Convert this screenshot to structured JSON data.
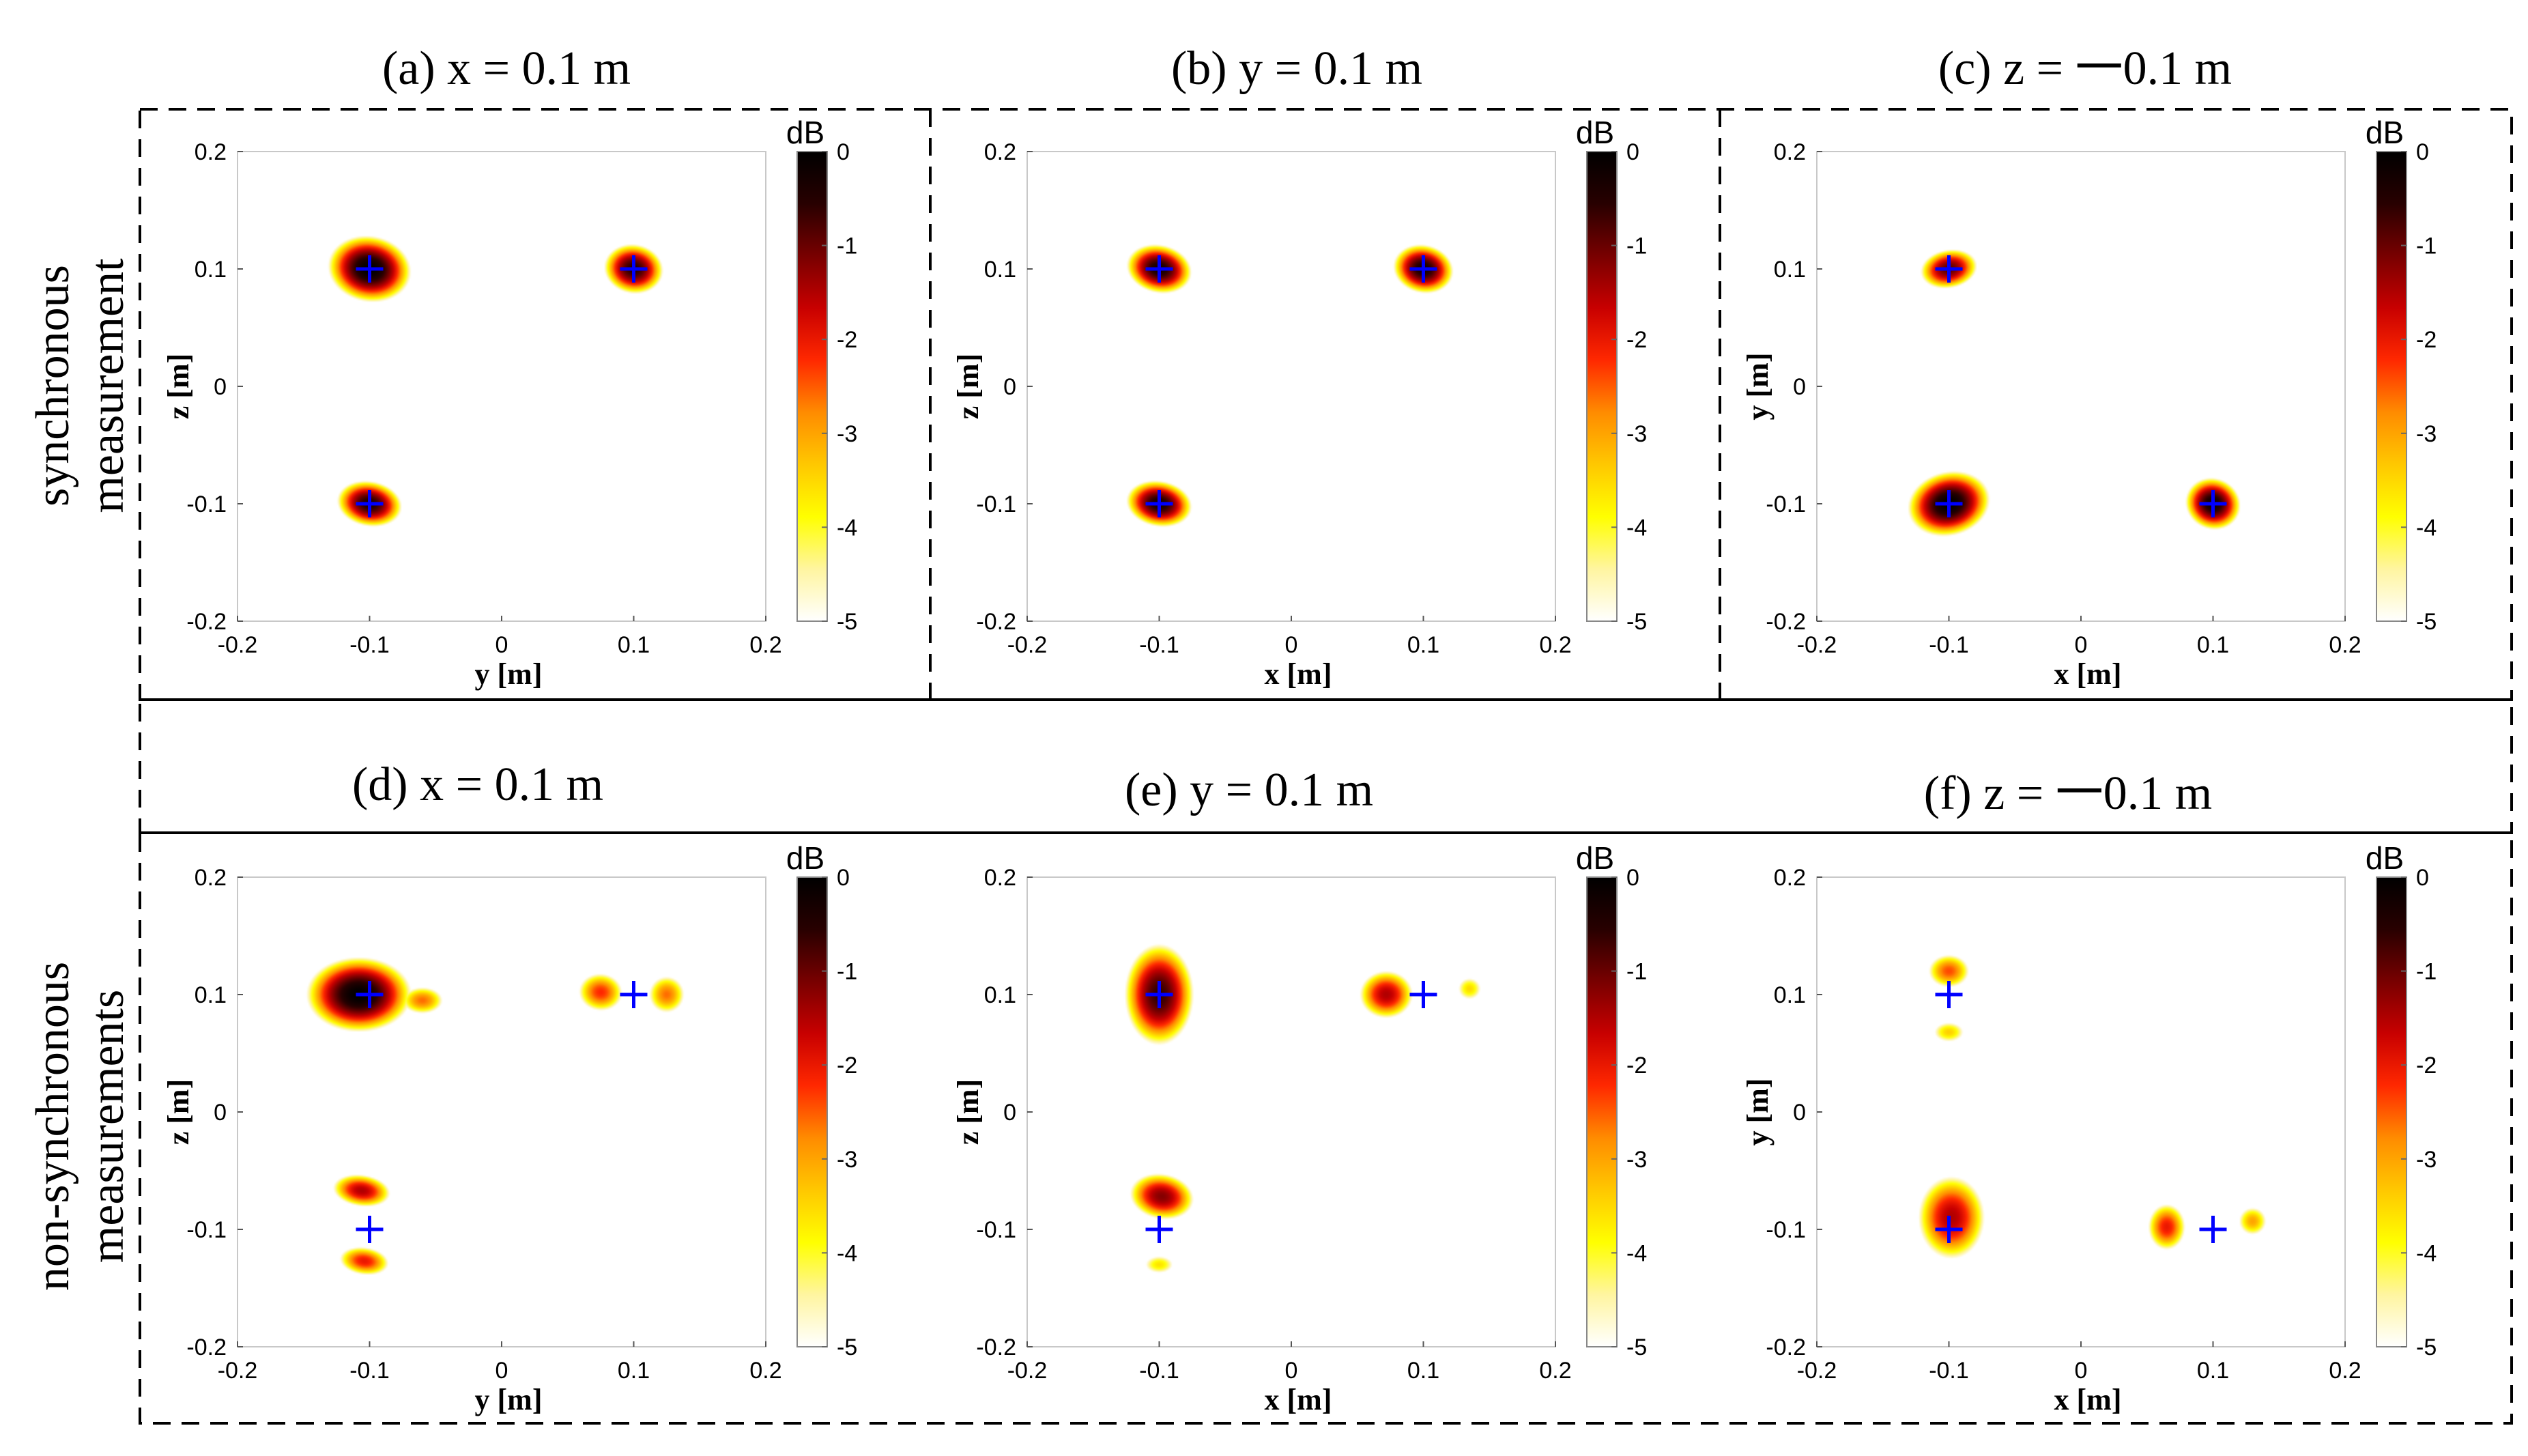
{
  "figure": {
    "row_labels": [
      [
        "synchronous",
        "measurement"
      ],
      [
        "non-synchronous",
        "measurements"
      ]
    ]
  },
  "colors": {
    "marker": "#0000ff",
    "colormap": [
      "#ffffff",
      "#fff5a0",
      "#ffff00",
      "#ffc800",
      "#ff8c00",
      "#ff2800",
      "#c80000",
      "#780000",
      "#280000",
      "#000000"
    ]
  },
  "chart_data": [
    {
      "type": "heatmap",
      "panel": "a",
      "title": "(a) x = 0.1 m",
      "xlabel": "y [m]",
      "ylabel": "z [m]",
      "xlim": [
        -0.2,
        0.2
      ],
      "ylim": [
        -0.2,
        0.2
      ],
      "xticks": [
        "-0.2",
        "-0.1",
        "0",
        "0.1",
        "0.2"
      ],
      "yticks": [
        "0.2",
        "0.1",
        "0",
        "-0.1",
        "-0.2"
      ],
      "colorbar": {
        "label": "dB",
        "range": [
          -5,
          0
        ],
        "ticks": [
          "0",
          "-1",
          "-2",
          "-3",
          "-4",
          "-5"
        ]
      },
      "sources": [
        [
          -0.1,
          0.1
        ],
        [
          0.1,
          0.1
        ],
        [
          -0.1,
          -0.1
        ]
      ],
      "blobs": [
        {
          "x": -0.1,
          "y": 0.1,
          "sx": 0.032,
          "sy": 0.028,
          "peak": 0,
          "rot": -20
        },
        {
          "x": 0.1,
          "y": 0.1,
          "sx": 0.024,
          "sy": 0.022,
          "peak": -0.5,
          "rot": -25
        },
        {
          "x": -0.1,
          "y": -0.1,
          "sx": 0.026,
          "sy": 0.02,
          "peak": -0.4,
          "rot": -15
        }
      ]
    },
    {
      "type": "heatmap",
      "panel": "b",
      "title": "(b) y = 0.1 m",
      "xlabel": "x [m]",
      "ylabel": "z [m]",
      "xlim": [
        -0.2,
        0.2
      ],
      "ylim": [
        -0.2,
        0.2
      ],
      "xticks": [
        "-0.2",
        "-0.1",
        "0",
        "0.1",
        "0.2"
      ],
      "yticks": [
        "0.2",
        "0.1",
        "0",
        "-0.1",
        "-0.2"
      ],
      "colorbar": {
        "label": "dB",
        "range": [
          -5,
          0
        ],
        "ticks": [
          "0",
          "-1",
          "-2",
          "-3",
          "-4",
          "-5"
        ]
      },
      "sources": [
        [
          -0.1,
          0.1
        ],
        [
          0.1,
          0.1
        ],
        [
          -0.1,
          -0.1
        ]
      ],
      "blobs": [
        {
          "x": -0.1,
          "y": 0.1,
          "sx": 0.026,
          "sy": 0.021,
          "peak": -0.3,
          "rot": -20
        },
        {
          "x": 0.1,
          "y": 0.1,
          "sx": 0.024,
          "sy": 0.021,
          "peak": -0.3,
          "rot": -25
        },
        {
          "x": -0.1,
          "y": -0.1,
          "sx": 0.026,
          "sy": 0.02,
          "peak": -0.3,
          "rot": -15
        }
      ]
    },
    {
      "type": "heatmap",
      "panel": "c",
      "title": "(c) z = 一0.1 m",
      "xlabel": "x [m]",
      "ylabel": "y [m]",
      "xlim": [
        -0.2,
        0.2
      ],
      "ylim": [
        -0.2,
        0.2
      ],
      "xticks": [
        "-0.2",
        "-0.1",
        "0",
        "0.1",
        "0.2"
      ],
      "yticks": [
        "0.2",
        "0.1",
        "0",
        "-0.1",
        "-0.2"
      ],
      "colorbar": {
        "label": "dB",
        "range": [
          -5,
          0
        ],
        "ticks": [
          "0",
          "-1",
          "-2",
          "-3",
          "-4",
          "-5"
        ]
      },
      "sources": [
        [
          -0.1,
          0.1
        ],
        [
          -0.1,
          -0.1
        ],
        [
          0.1,
          -0.1
        ]
      ],
      "blobs": [
        {
          "x": -0.1,
          "y": 0.1,
          "sx": 0.024,
          "sy": 0.018,
          "peak": -0.9,
          "rot": 15
        },
        {
          "x": -0.1,
          "y": -0.1,
          "sx": 0.032,
          "sy": 0.027,
          "peak": 0,
          "rot": 25
        },
        {
          "x": 0.1,
          "y": -0.1,
          "sx": 0.021,
          "sy": 0.023,
          "peak": -0.2,
          "rot": 25
        }
      ]
    },
    {
      "type": "heatmap",
      "panel": "d",
      "title": "(d) x = 0.1 m",
      "xlabel": "y [m]",
      "ylabel": "z [m]",
      "xlim": [
        -0.2,
        0.2
      ],
      "ylim": [
        -0.2,
        0.2
      ],
      "xticks": [
        "-0.2",
        "-0.1",
        "0",
        "0.1",
        "0.2"
      ],
      "yticks": [
        "0.2",
        "0.1",
        "0",
        "-0.1",
        "-0.2"
      ],
      "colorbar": {
        "label": "dB",
        "range": [
          -5,
          0
        ],
        "ticks": [
          "0",
          "-1",
          "-2",
          "-3",
          "-4",
          "-5"
        ]
      },
      "sources": [
        [
          -0.1,
          0.1
        ],
        [
          0.1,
          0.1
        ],
        [
          -0.1,
          -0.1
        ]
      ],
      "blobs": [
        {
          "x": -0.108,
          "y": 0.1,
          "sx": 0.04,
          "sy": 0.032,
          "peak": 0,
          "rot": 0
        },
        {
          "x": -0.06,
          "y": 0.095,
          "sx": 0.022,
          "sy": 0.016,
          "peak": -2.6,
          "rot": 0
        },
        {
          "x": 0.075,
          "y": 0.102,
          "sx": 0.022,
          "sy": 0.021,
          "peak": -2.2,
          "rot": -20
        },
        {
          "x": 0.125,
          "y": 0.1,
          "sx": 0.019,
          "sy": 0.022,
          "peak": -2.6,
          "rot": 0
        },
        {
          "x": -0.106,
          "y": -0.067,
          "sx": 0.026,
          "sy": 0.016,
          "peak": -1.5,
          "rot": -10
        },
        {
          "x": -0.104,
          "y": -0.127,
          "sx": 0.024,
          "sy": 0.015,
          "peak": -2.0,
          "rot": -10
        }
      ]
    },
    {
      "type": "heatmap",
      "panel": "e",
      "title": "(e) y = 0.1 m",
      "xlabel": "x [m]",
      "ylabel": "z [m]",
      "xlim": [
        -0.2,
        0.2
      ],
      "ylim": [
        -0.2,
        0.2
      ],
      "xticks": [
        "-0.2",
        "-0.1",
        "0",
        "0.1",
        "0.2"
      ],
      "yticks": [
        "0.2",
        "0.1",
        "0",
        "-0.1",
        "-0.2"
      ],
      "colorbar": {
        "label": "dB",
        "range": [
          -5,
          0
        ],
        "ticks": [
          "0",
          "-1",
          "-2",
          "-3",
          "-4",
          "-5"
        ]
      },
      "sources": [
        [
          -0.1,
          0.1
        ],
        [
          0.1,
          0.1
        ],
        [
          -0.1,
          -0.1
        ]
      ],
      "blobs": [
        {
          "x": -0.1,
          "y": 0.1,
          "sx": 0.028,
          "sy": 0.046,
          "peak": -0.6,
          "rot": 0
        },
        {
          "x": 0.072,
          "y": 0.1,
          "sx": 0.024,
          "sy": 0.024,
          "peak": -1.5,
          "rot": -20
        },
        {
          "x": 0.135,
          "y": 0.105,
          "sx": 0.015,
          "sy": 0.016,
          "peak": -3.5,
          "rot": 0
        },
        {
          "x": -0.098,
          "y": -0.072,
          "sx": 0.028,
          "sy": 0.022,
          "peak": -1.2,
          "rot": -15
        },
        {
          "x": -0.1,
          "y": -0.13,
          "sx": 0.019,
          "sy": 0.013,
          "peak": -3.6,
          "rot": 0
        }
      ]
    },
    {
      "type": "heatmap",
      "panel": "f",
      "title": "(f) z = 一0.1 m",
      "xlabel": "x [m]",
      "ylabel": "y [m]",
      "xlim": [
        -0.2,
        0.2
      ],
      "ylim": [
        -0.2,
        0.2
      ],
      "xticks": [
        "-0.2",
        "-0.1",
        "0",
        "0.1",
        "0.2"
      ],
      "yticks": [
        "0.2",
        "0.1",
        "0",
        "-0.1",
        "-0.2"
      ],
      "colorbar": {
        "label": "dB",
        "range": [
          -5,
          0
        ],
        "ticks": [
          "0",
          "-1",
          "-2",
          "-3",
          "-4",
          "-5"
        ]
      },
      "sources": [
        [
          -0.1,
          0.1
        ],
        [
          -0.1,
          -0.1
        ],
        [
          0.1,
          -0.1
        ]
      ],
      "blobs": [
        {
          "x": -0.1,
          "y": 0.12,
          "sx": 0.021,
          "sy": 0.019,
          "peak": -2.4,
          "rot": 0
        },
        {
          "x": -0.1,
          "y": 0.068,
          "sx": 0.019,
          "sy": 0.014,
          "peak": -3.4,
          "rot": 0
        },
        {
          "x": -0.098,
          "y": -0.09,
          "sx": 0.03,
          "sy": 0.042,
          "peak": -1.5,
          "rot": 0
        },
        {
          "x": 0.065,
          "y": -0.098,
          "sx": 0.018,
          "sy": 0.025,
          "peak": -2.0,
          "rot": 0
        },
        {
          "x": 0.13,
          "y": -0.093,
          "sx": 0.016,
          "sy": 0.018,
          "peak": -3.0,
          "rot": 0
        }
      ]
    }
  ]
}
